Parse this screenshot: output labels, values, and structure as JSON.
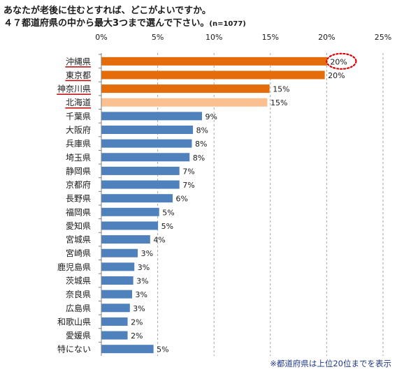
{
  "title": {
    "line1": "あなたが老後に住むとすれば、どこがよいですか。",
    "line2": "４７都道府県の中から最大3つまで選んで下さい。",
    "n_label": "(n=1077)"
  },
  "footnote": "※都道府県は上位20位までを表示",
  "colors": {
    "highlight": "#E46C0A",
    "highlight_light": "#FAC090",
    "default": "#4F81BD",
    "underline": "#C00000",
    "circle": "#E00000"
  },
  "chart_data": {
    "type": "bar",
    "orientation": "horizontal",
    "categories": [
      "沖縄県",
      "東京都",
      "神奈川県",
      "北海道",
      "千葉県",
      "大阪府",
      "兵庫県",
      "埼玉県",
      "静岡県",
      "京都府",
      "長野県",
      "福岡県",
      "愛知県",
      "宮城県",
      "宮崎県",
      "鹿児島県",
      "茨城県",
      "奈良県",
      "広島県",
      "和歌山県",
      "愛媛県",
      "特にない"
    ],
    "values": [
      20,
      20,
      15,
      15,
      9,
      8,
      8,
      8,
      7,
      7,
      6,
      5,
      5,
      4,
      3,
      3,
      3,
      3,
      3,
      2,
      2,
      5
    ],
    "bar_lengths": [
      20.0,
      19.8,
      14.9,
      14.7,
      8.9,
      8.1,
      8.0,
      7.8,
      6.9,
      6.9,
      6.3,
      5.1,
      5.0,
      4.3,
      3.2,
      2.9,
      2.8,
      2.7,
      2.5,
      2.3,
      2.3,
      4.6
    ],
    "value_labels": [
      "20%",
      "20%",
      "15%",
      "15%",
      "9%",
      "8%",
      "8%",
      "8%",
      "7%",
      "7%",
      "6%",
      "5%",
      "5%",
      "4%",
      "3%",
      "3%",
      "3%",
      "3%",
      "3%",
      "2%",
      "2%",
      "5%"
    ],
    "bar_colors": [
      "highlight",
      "highlight",
      "highlight",
      "highlight_light",
      "default",
      "default",
      "default",
      "default",
      "default",
      "default",
      "default",
      "default",
      "default",
      "default",
      "default",
      "default",
      "default",
      "default",
      "default",
      "default",
      "default",
      "default"
    ],
    "underlined": [
      0,
      1,
      2,
      3
    ],
    "circled": [
      0
    ],
    "xlim": [
      0,
      25
    ],
    "xticks": [
      "0%",
      "5%",
      "10%",
      "15%",
      "20%",
      "25%"
    ],
    "xtick_values": [
      0,
      5,
      10,
      15,
      20,
      25
    ],
    "grid": "vertical-dashed",
    "xlabel": "",
    "ylabel": ""
  }
}
